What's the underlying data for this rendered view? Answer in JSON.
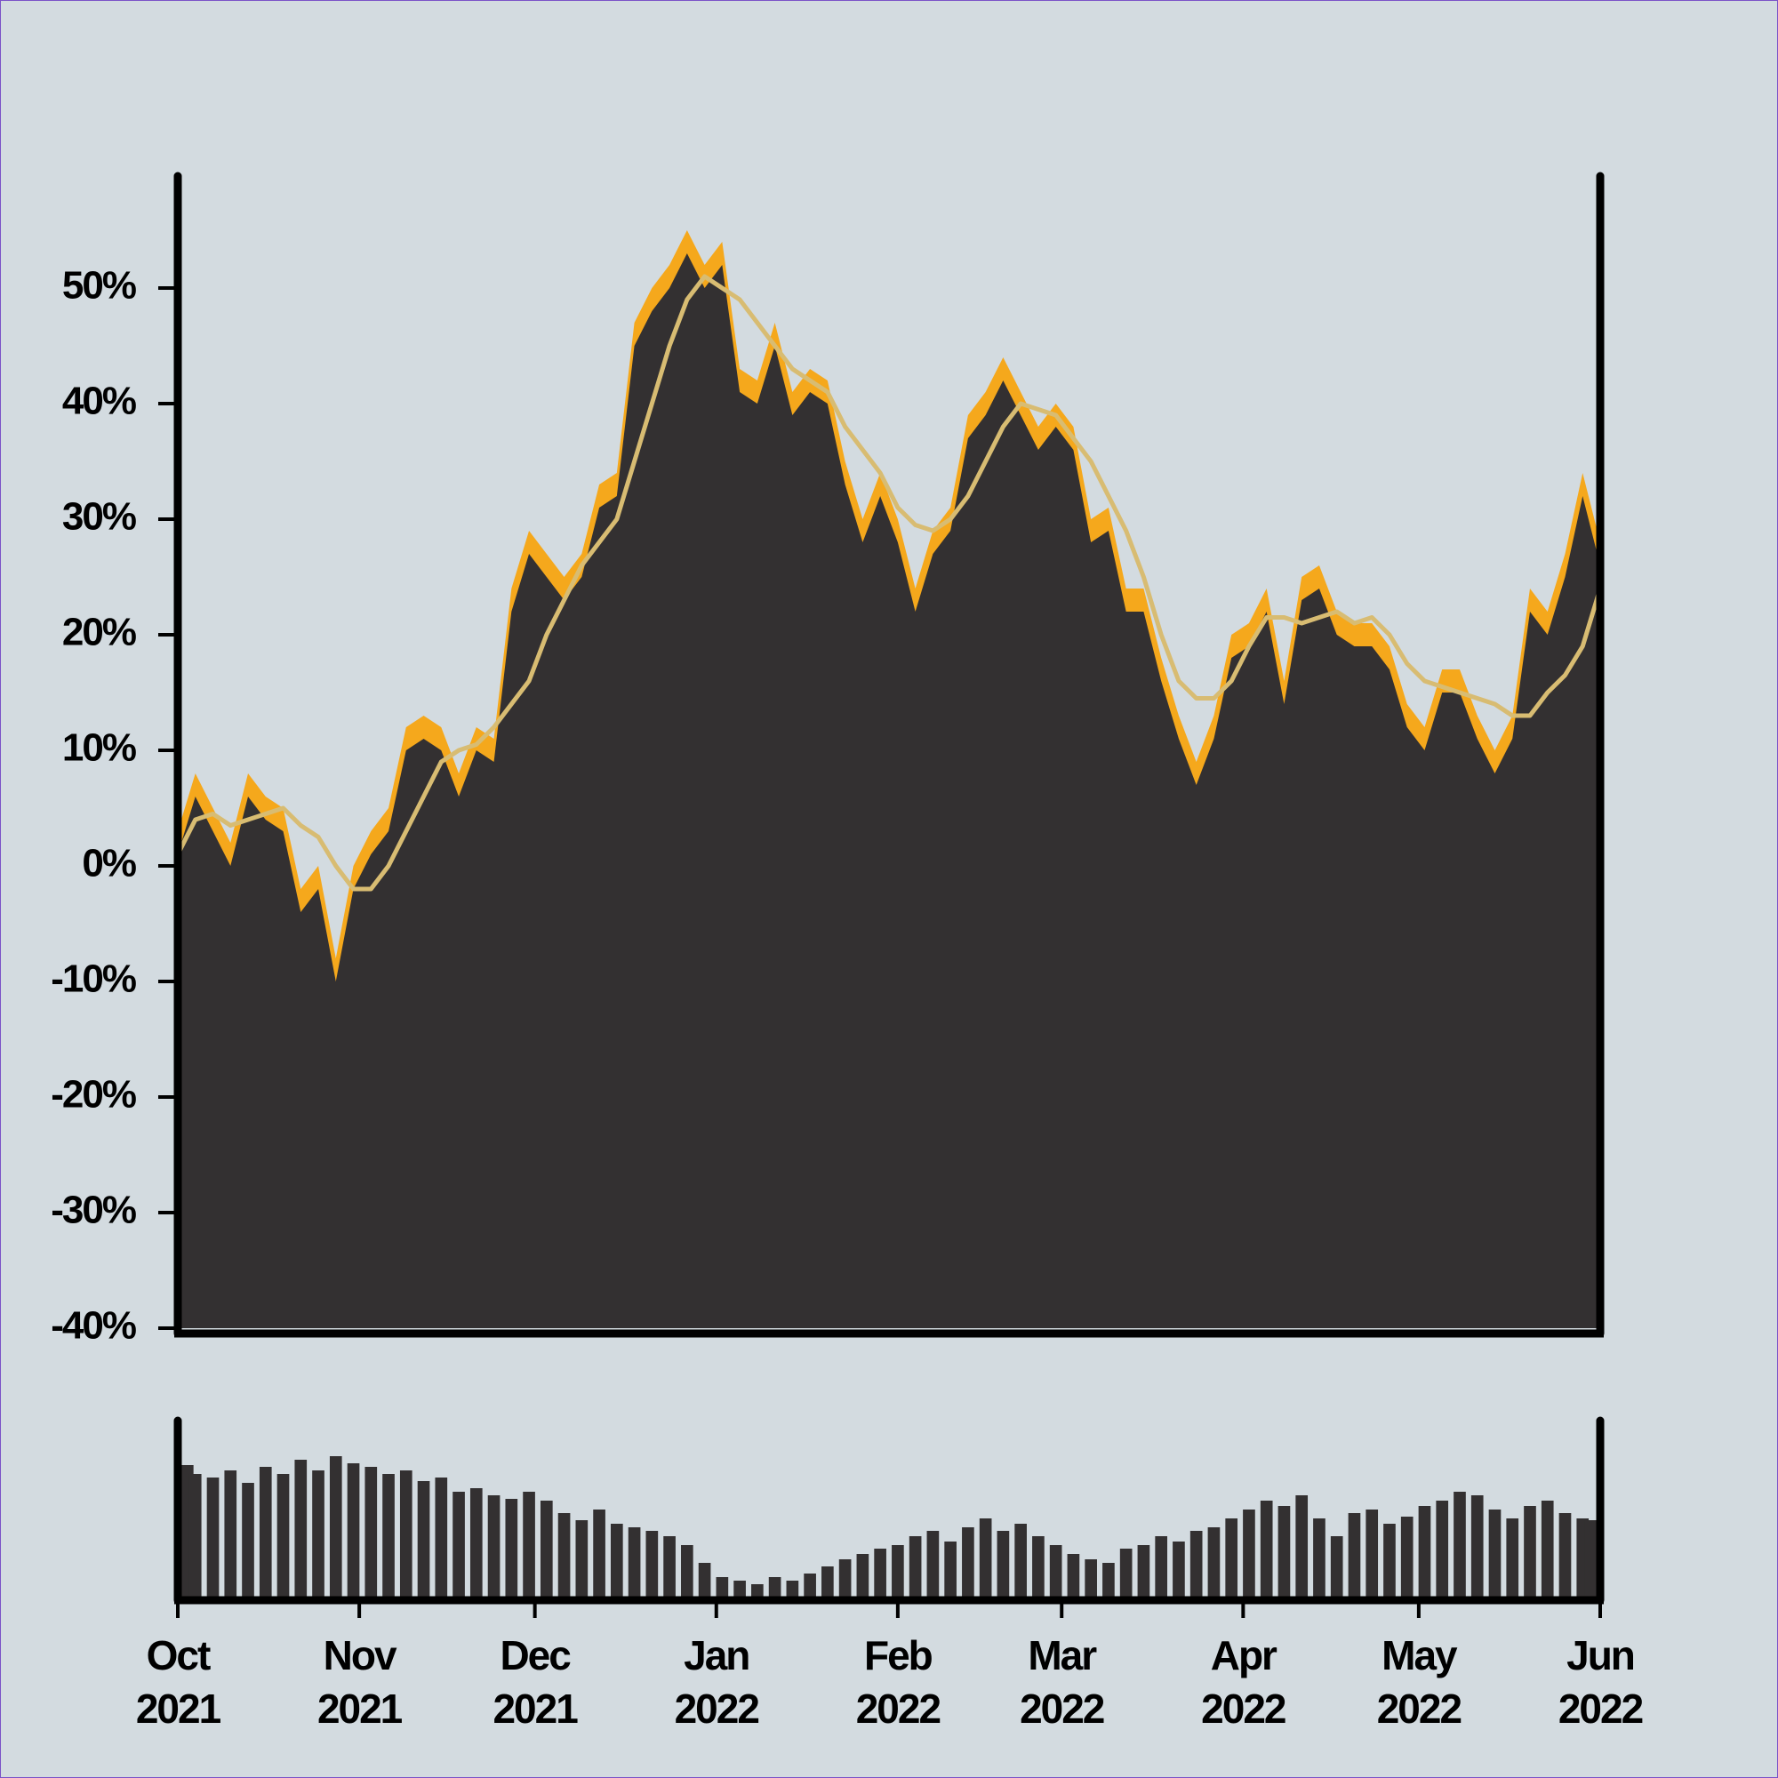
{
  "chart_data": [
    {
      "type": "area",
      "x": [
        0,
        3,
        6,
        9,
        12,
        15,
        18,
        21,
        24,
        27,
        30,
        33,
        36,
        39,
        42,
        45,
        48,
        51,
        54,
        57,
        60,
        63,
        66,
        69,
        72,
        75,
        78,
        81,
        84,
        87,
        90,
        93,
        96,
        99,
        102,
        105,
        108,
        111,
        114,
        117,
        120,
        123,
        126,
        129,
        132,
        135,
        138,
        141,
        144,
        147,
        150,
        153,
        156,
        159,
        162,
        165,
        168,
        171,
        174,
        177,
        180,
        183,
        186,
        189,
        192,
        195,
        198,
        201,
        204,
        207,
        210,
        213,
        216,
        219,
        222,
        225,
        228,
        231,
        234,
        237,
        240,
        243
      ],
      "xlim": [
        0,
        243
      ],
      "ylim": [
        -40,
        60
      ],
      "yticks": [
        {
          "value": -40,
          "label": "-40%"
        },
        {
          "value": -30,
          "label": "-30%"
        },
        {
          "value": -20,
          "label": "-20%"
        },
        {
          "value": -10,
          "label": "-10%"
        },
        {
          "value": 0,
          "label": "0%"
        },
        {
          "value": 10,
          "label": "10%"
        },
        {
          "value": 20,
          "label": "20%"
        },
        {
          "value": 30,
          "label": "30%"
        },
        {
          "value": 40,
          "label": "40%"
        },
        {
          "value": 50,
          "label": "50%"
        }
      ],
      "series": [
        {
          "type": "area",
          "color": "#f5a81c",
          "values": [
            3,
            8,
            5,
            2,
            8,
            6,
            5,
            -2,
            0,
            -8,
            0,
            3,
            5,
            12,
            13,
            12,
            8,
            12,
            11,
            24,
            29,
            27,
            25,
            27,
            33,
            34,
            47,
            50,
            52,
            55,
            52,
            54,
            43,
            42,
            47,
            41,
            43,
            42,
            35,
            30,
            34,
            30,
            24,
            29,
            31,
            39,
            41,
            44,
            41,
            38,
            40,
            38,
            30,
            31,
            24,
            24,
            18,
            13,
            9,
            13,
            20,
            21,
            24,
            16,
            25,
            26,
            22,
            21,
            21,
            19,
            14,
            12,
            17,
            17,
            13,
            10,
            13,
            24,
            22,
            27,
            34,
            28
          ]
        },
        {
          "type": "area",
          "color": "#333031",
          "values": [
            1,
            6,
            3,
            0,
            6,
            4,
            3,
            -4,
            -2,
            -10,
            -2,
            1,
            3,
            10,
            11,
            10,
            6,
            10,
            9,
            22,
            27,
            25,
            23,
            25,
            31,
            32,
            45,
            48,
            50,
            53,
            50,
            52,
            41,
            40,
            45,
            39,
            41,
            40,
            33,
            28,
            32,
            28,
            22,
            27,
            29,
            37,
            39,
            42,
            39,
            36,
            38,
            36,
            28,
            29,
            22,
            22,
            16,
            11,
            7,
            11,
            18,
            19,
            22,
            14,
            23,
            24,
            20,
            19,
            19,
            17,
            12,
            10,
            15,
            15,
            11,
            8,
            11,
            22,
            20,
            25,
            32,
            26
          ]
        },
        {
          "type": "line",
          "color": "#d8bc72",
          "values": [
            1,
            4,
            4.5,
            3.5,
            4,
            4.5,
            5,
            3.5,
            2.5,
            0,
            -2,
            -2,
            0,
            3,
            6,
            9,
            10,
            10.5,
            12,
            14,
            16,
            20,
            23,
            26,
            28,
            30,
            35,
            40,
            45,
            49,
            51,
            50,
            49,
            47,
            45,
            43,
            42,
            41,
            38,
            36,
            34,
            31,
            29.5,
            29,
            30,
            32,
            35,
            38,
            40,
            39.5,
            39,
            37,
            35,
            32,
            29,
            25,
            20,
            16,
            14.5,
            14.5,
            16,
            19,
            21.5,
            21.5,
            21,
            21.5,
            22,
            21,
            21.5,
            20,
            17.5,
            16,
            15.5,
            15,
            14.5,
            14,
            13,
            13,
            15,
            16.5,
            19,
            24
          ]
        }
      ]
    },
    {
      "type": "bar",
      "color": "#333031",
      "x": [
        0,
        3,
        6,
        9,
        12,
        15,
        18,
        21,
        24,
        27,
        30,
        33,
        36,
        39,
        42,
        45,
        48,
        51,
        54,
        57,
        60,
        63,
        66,
        69,
        72,
        75,
        78,
        81,
        84,
        87,
        90,
        93,
        96,
        99,
        102,
        105,
        108,
        111,
        114,
        117,
        120,
        123,
        126,
        129,
        132,
        135,
        138,
        141,
        144,
        147,
        150,
        153,
        156,
        159,
        162,
        165,
        168,
        171,
        174,
        177,
        180,
        183,
        186,
        189,
        192,
        195,
        198,
        201,
        204,
        207,
        210,
        213,
        216,
        219,
        222,
        225,
        228,
        231,
        234,
        237,
        240,
        243
      ],
      "values": [
        75,
        70,
        68,
        72,
        65,
        74,
        70,
        78,
        72,
        80,
        76,
        74,
        70,
        72,
        66,
        68,
        60,
        62,
        58,
        56,
        60,
        55,
        48,
        44,
        50,
        42,
        40,
        38,
        35,
        30,
        20,
        12,
        10,
        8,
        12,
        10,
        14,
        18,
        22,
        25,
        28,
        30,
        35,
        38,
        32,
        40,
        45,
        38,
        42,
        35,
        30,
        25,
        22,
        20,
        28,
        30,
        35,
        32,
        38,
        40,
        45,
        50,
        55,
        52,
        58,
        45,
        35,
        48,
        50,
        42,
        46,
        52,
        55,
        60,
        58,
        50,
        45,
        52,
        55,
        48,
        45,
        44
      ],
      "xlim": [
        0,
        243
      ],
      "ylim": [
        0,
        100
      ],
      "xticks": [
        {
          "value": 0,
          "label": "Oct",
          "year": "2021"
        },
        {
          "value": 31,
          "label": "Nov",
          "year": "2021"
        },
        {
          "value": 61,
          "label": "Dec",
          "year": "2021"
        },
        {
          "value": 92,
          "label": "Jan",
          "year": "2022"
        },
        {
          "value": 123,
          "label": "Feb",
          "year": "2022"
        },
        {
          "value": 151,
          "label": "Mar",
          "year": "2022"
        },
        {
          "value": 182,
          "label": "Apr",
          "year": "2022"
        },
        {
          "value": 212,
          "label": "May",
          "year": "2022"
        },
        {
          "value": 243,
          "label": "Jun",
          "year": "2022"
        }
      ]
    }
  ]
}
